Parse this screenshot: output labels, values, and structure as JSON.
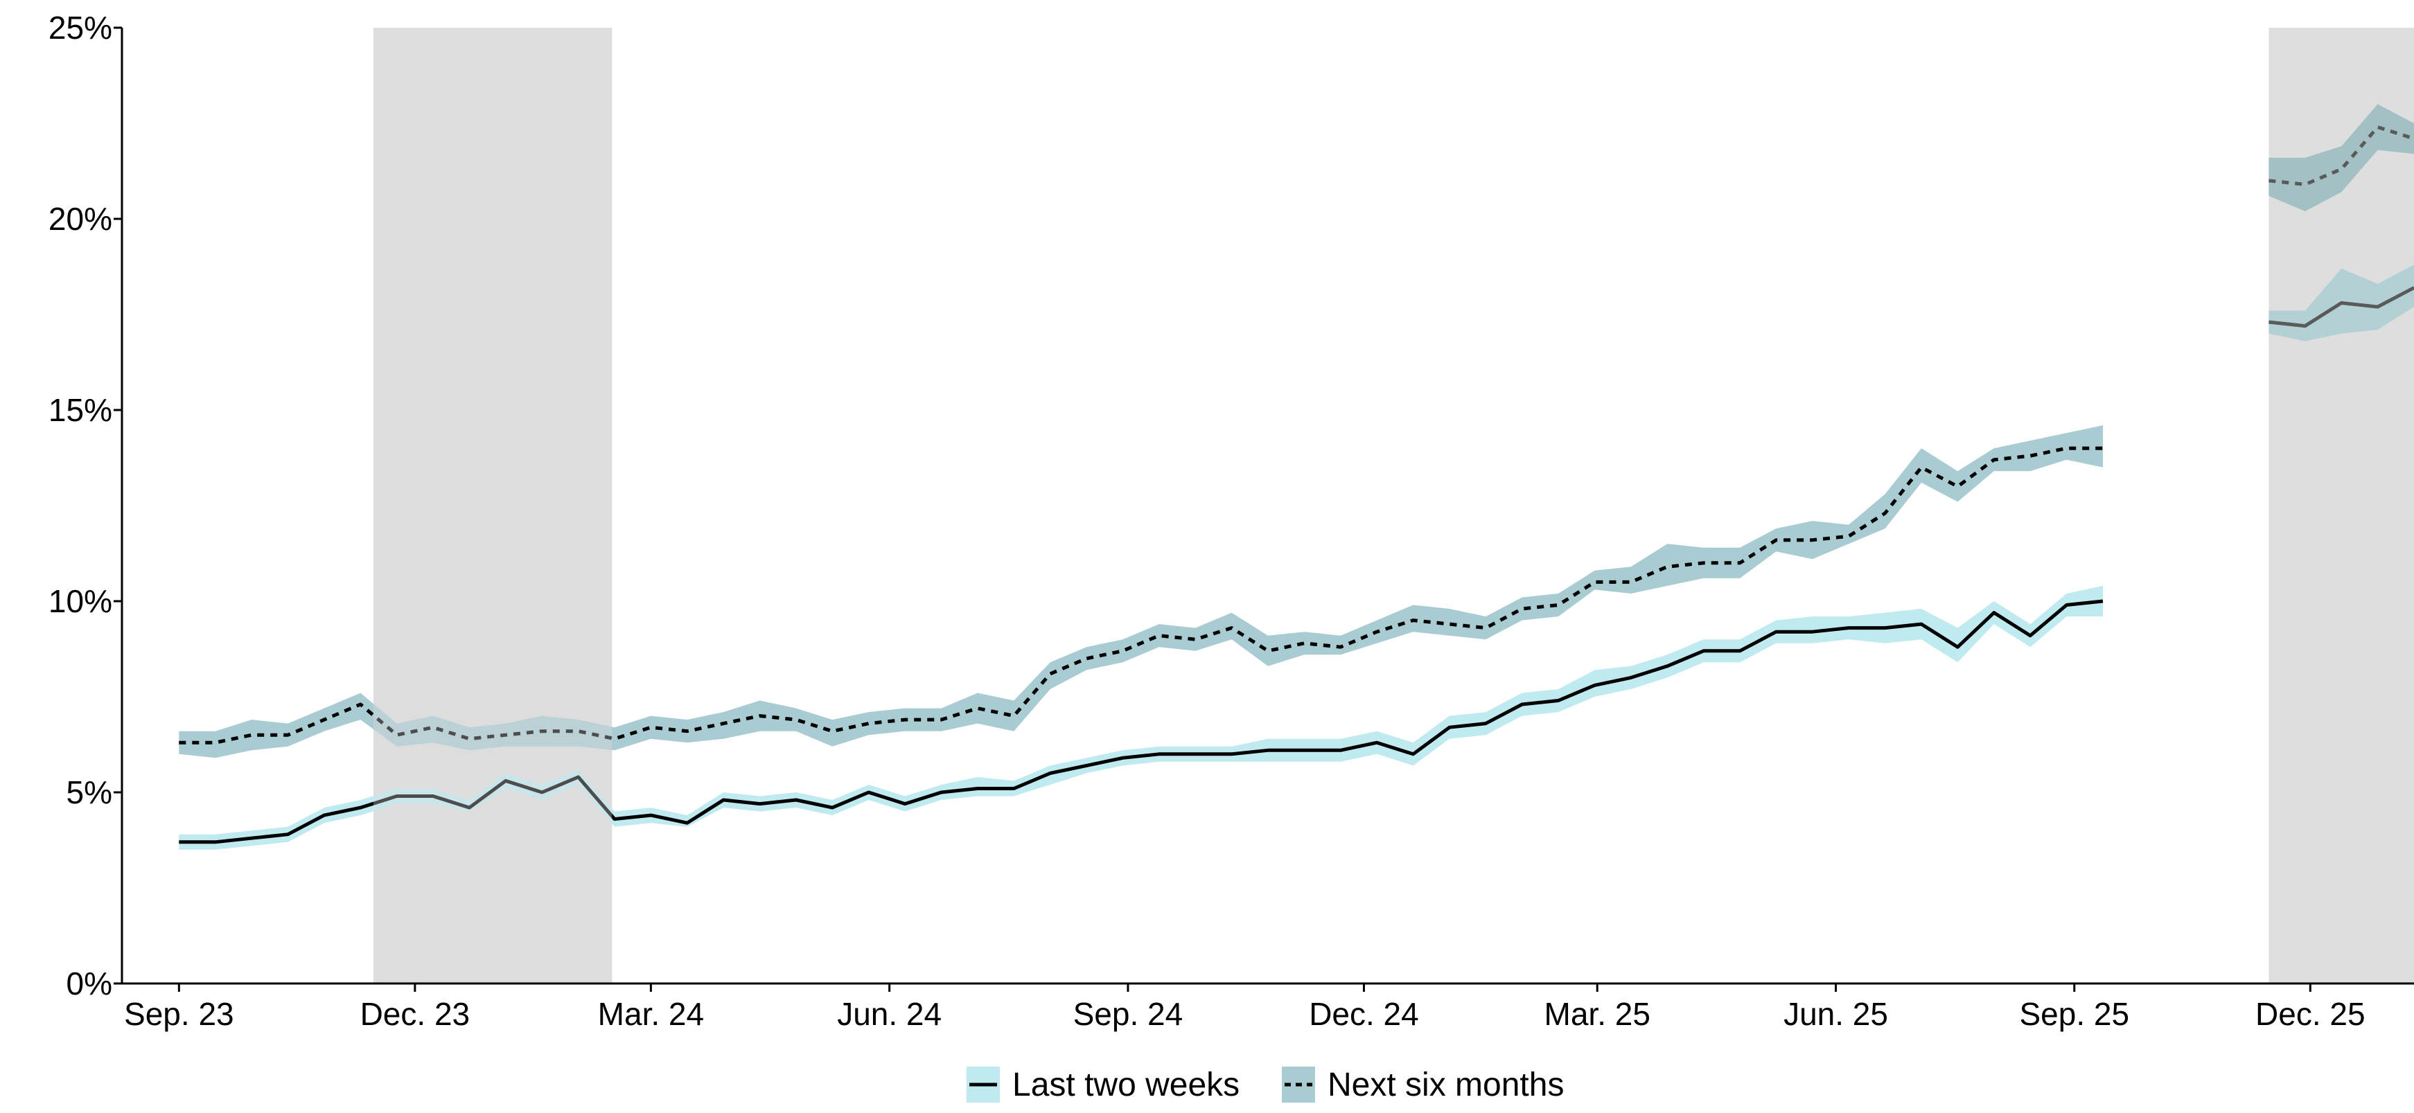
{
  "chart_data": {
    "type": "line",
    "title": "",
    "xlabel": "",
    "ylabel": "",
    "ylim": [
      0,
      25
    ],
    "y_ticks": [
      0,
      5,
      10,
      15,
      20,
      25
    ],
    "y_tick_labels": [
      "0%",
      "5%",
      "10%",
      "15%",
      "20%",
      "25%"
    ],
    "x_tick_labels": [
      "Sep. 23",
      "Dec. 23",
      "Mar. 24",
      "Jun. 24",
      "Sep. 24",
      "Dec. 24",
      "Mar. 25",
      "Jun. 25",
      "Sep. 25",
      "Dec. 25"
    ],
    "x_tick_dates": [
      "2023-09-01",
      "2023-12-01",
      "2024-03-01",
      "2024-06-01",
      "2024-09-01",
      "2024-12-01",
      "2025-03-01",
      "2025-06-01",
      "2025-09-01",
      "2025-12-01"
    ],
    "xlim": [
      "2023-08-10",
      "2026-01-10"
    ],
    "grid": false,
    "legend_position": "bottom",
    "shaded_periods": [
      {
        "start": "2023-11-15",
        "end": "2024-02-15"
      },
      {
        "start": "2025-11-15",
        "end": "2026-01-10"
      }
    ],
    "series": [
      {
        "name": "Last two weeks",
        "line_style": "solid",
        "line_color": "#000000",
        "band_color": "#bfeaf0",
        "x": [
          "2023-09-01",
          "2023-09-15",
          "2023-09-29",
          "2023-10-13",
          "2023-10-27",
          "2023-11-10",
          "2023-11-24",
          "2023-12-08",
          "2023-12-22",
          "2024-01-05",
          "2024-01-19",
          "2024-02-02",
          "2024-02-16",
          "2024-03-01",
          "2024-03-15",
          "2024-03-29",
          "2024-04-12",
          "2024-04-26",
          "2024-05-10",
          "2024-05-24",
          "2024-06-07",
          "2024-06-21",
          "2024-07-05",
          "2024-07-19",
          "2024-08-02",
          "2024-08-16",
          "2024-08-30",
          "2024-09-13",
          "2024-09-27",
          "2024-10-11",
          "2024-10-25",
          "2024-11-08",
          "2024-11-22",
          "2024-12-06",
          "2024-12-20",
          "2025-01-03",
          "2025-01-17",
          "2025-01-31",
          "2025-02-14",
          "2025-02-28",
          "2025-03-14",
          "2025-03-28",
          "2025-04-11",
          "2025-04-25",
          "2025-05-09",
          "2025-05-23",
          "2025-06-06",
          "2025-06-20",
          "2025-07-04",
          "2025-07-18",
          "2025-08-01",
          "2025-08-15",
          "2025-08-29",
          "2025-09-12"
        ],
        "y": [
          3.7,
          3.7,
          3.8,
          3.9,
          4.4,
          4.6,
          4.9,
          4.9,
          4.6,
          5.3,
          5.0,
          5.4,
          4.3,
          4.4,
          4.2,
          4.8,
          4.7,
          4.8,
          4.6,
          5.0,
          4.7,
          5.0,
          5.1,
          5.1,
          5.5,
          5.7,
          5.9,
          6.0,
          6.0,
          6.0,
          6.1,
          6.1,
          6.1,
          6.3,
          6.0,
          6.7,
          6.8,
          7.3,
          7.4,
          7.8,
          8.0,
          8.3,
          8.7,
          8.7,
          9.2,
          9.2,
          9.3,
          9.3,
          9.4,
          8.8,
          9.7,
          9.1,
          9.9,
          10.0
        ],
        "lower": [
          3.5,
          3.5,
          3.6,
          3.7,
          4.2,
          4.4,
          4.7,
          4.7,
          4.5,
          5.1,
          4.8,
          5.2,
          4.1,
          4.2,
          4.1,
          4.6,
          4.5,
          4.6,
          4.4,
          4.8,
          4.5,
          4.8,
          4.9,
          4.9,
          5.2,
          5.5,
          5.7,
          5.8,
          5.8,
          5.8,
          5.8,
          5.8,
          5.8,
          6.0,
          5.7,
          6.4,
          6.5,
          7.0,
          7.1,
          7.5,
          7.7,
          8.0,
          8.4,
          8.4,
          8.9,
          8.9,
          9.0,
          8.9,
          9.0,
          8.4,
          9.4,
          8.8,
          9.6,
          9.6
        ],
        "upper": [
          3.9,
          3.9,
          4.0,
          4.1,
          4.6,
          4.8,
          5.1,
          5.1,
          4.8,
          5.5,
          5.2,
          5.6,
          4.5,
          4.6,
          4.4,
          5.0,
          4.9,
          5.0,
          4.8,
          5.2,
          4.9,
          5.2,
          5.4,
          5.3,
          5.7,
          5.9,
          6.1,
          6.2,
          6.2,
          6.2,
          6.4,
          6.4,
          6.4,
          6.6,
          6.3,
          7.0,
          7.1,
          7.6,
          7.7,
          8.2,
          8.3,
          8.6,
          9.0,
          9.0,
          9.5,
          9.6,
          9.6,
          9.7,
          9.8,
          9.3,
          10.0,
          9.4,
          10.2,
          10.4
        ]
      },
      {
        "name": "Next six months",
        "line_style": "dashed",
        "line_color": "#000000",
        "band_color": "#a9cbd2",
        "x": [
          "2023-09-01",
          "2023-09-15",
          "2023-09-29",
          "2023-10-13",
          "2023-10-27",
          "2023-11-10",
          "2023-11-24",
          "2023-12-08",
          "2023-12-22",
          "2024-01-05",
          "2024-01-19",
          "2024-02-02",
          "2024-02-16",
          "2024-03-01",
          "2024-03-15",
          "2024-03-29",
          "2024-04-12",
          "2024-04-26",
          "2024-05-10",
          "2024-05-24",
          "2024-06-07",
          "2024-06-21",
          "2024-07-05",
          "2024-07-19",
          "2024-08-02",
          "2024-08-16",
          "2024-08-30",
          "2024-09-13",
          "2024-09-27",
          "2024-10-11",
          "2024-10-25",
          "2024-11-08",
          "2024-11-22",
          "2024-12-06",
          "2024-12-20",
          "2025-01-03",
          "2025-01-17",
          "2025-01-31",
          "2025-02-14",
          "2025-02-28",
          "2025-03-14",
          "2025-03-28",
          "2025-04-11",
          "2025-04-25",
          "2025-05-09",
          "2025-05-23",
          "2025-06-06",
          "2025-06-20",
          "2025-07-04",
          "2025-07-18",
          "2025-08-01",
          "2025-08-15",
          "2025-08-29",
          "2025-09-12"
        ],
        "y": [
          6.3,
          6.3,
          6.5,
          6.5,
          6.9,
          7.3,
          6.5,
          6.7,
          6.4,
          6.5,
          6.6,
          6.6,
          6.4,
          6.7,
          6.6,
          6.8,
          7.0,
          6.9,
          6.6,
          6.8,
          6.9,
          6.9,
          7.2,
          7.0,
          8.1,
          8.5,
          8.7,
          9.1,
          9.0,
          9.3,
          8.7,
          8.9,
          8.8,
          9.2,
          9.5,
          9.4,
          9.3,
          9.8,
          9.9,
          10.5,
          10.5,
          10.9,
          11.0,
          11.0,
          11.6,
          11.6,
          11.7,
          12.3,
          13.5,
          13.0,
          13.7,
          13.8,
          14.0,
          14.0
        ],
        "lower": [
          6.0,
          5.9,
          6.1,
          6.2,
          6.6,
          6.9,
          6.2,
          6.3,
          6.1,
          6.2,
          6.2,
          6.2,
          6.1,
          6.4,
          6.3,
          6.4,
          6.6,
          6.6,
          6.2,
          6.5,
          6.6,
          6.6,
          6.8,
          6.6,
          7.7,
          8.2,
          8.4,
          8.8,
          8.7,
          9.0,
          8.3,
          8.6,
          8.6,
          8.9,
          9.2,
          9.1,
          9.0,
          9.5,
          9.6,
          10.3,
          10.2,
          10.4,
          10.6,
          10.6,
          11.3,
          11.1,
          11.5,
          11.9,
          13.1,
          12.6,
          13.4,
          13.4,
          13.7,
          13.5
        ],
        "upper": [
          6.6,
          6.6,
          6.9,
          6.8,
          7.2,
          7.6,
          6.8,
          7.0,
          6.7,
          6.8,
          7.0,
          6.9,
          6.7,
          7.0,
          6.9,
          7.1,
          7.4,
          7.2,
          6.9,
          7.1,
          7.2,
          7.2,
          7.6,
          7.4,
          8.4,
          8.8,
          9.0,
          9.4,
          9.3,
          9.7,
          9.1,
          9.2,
          9.1,
          9.5,
          9.9,
          9.8,
          9.6,
          10.1,
          10.2,
          10.8,
          10.9,
          11.5,
          11.4,
          11.4,
          11.9,
          12.1,
          12.0,
          12.8,
          14.0,
          13.4,
          14.0,
          14.2,
          14.4,
          14.6
        ]
      }
    ],
    "future_series": [
      {
        "name": "Last two weeks",
        "line_style": "solid",
        "x": [
          "2025-11-15",
          "2025-11-29",
          "2025-12-13",
          "2025-12-27",
          "2026-01-10"
        ],
        "y": [
          17.3,
          17.2,
          17.8,
          17.7,
          18.2
        ],
        "lower": [
          17.0,
          16.8,
          17.0,
          17.1,
          17.7
        ],
        "upper": [
          17.6,
          17.6,
          18.7,
          18.3,
          18.8
        ]
      },
      {
        "name": "Next six months",
        "line_style": "dashed",
        "x": [
          "2025-11-15",
          "2025-11-29",
          "2025-12-13",
          "2025-12-27",
          "2026-01-10"
        ],
        "y": [
          21.0,
          20.9,
          21.3,
          22.4,
          22.1
        ],
        "lower": [
          20.6,
          20.2,
          20.7,
          21.8,
          21.7
        ],
        "upper": [
          21.6,
          21.6,
          21.9,
          23.0,
          22.5
        ]
      }
    ],
    "legend": [
      {
        "label": "Last two weeks",
        "line_style": "solid",
        "swatch_color": "#bfeaf0"
      },
      {
        "label": "Next six months",
        "line_style": "dashed",
        "swatch_color": "#a9cbd2"
      }
    ]
  }
}
